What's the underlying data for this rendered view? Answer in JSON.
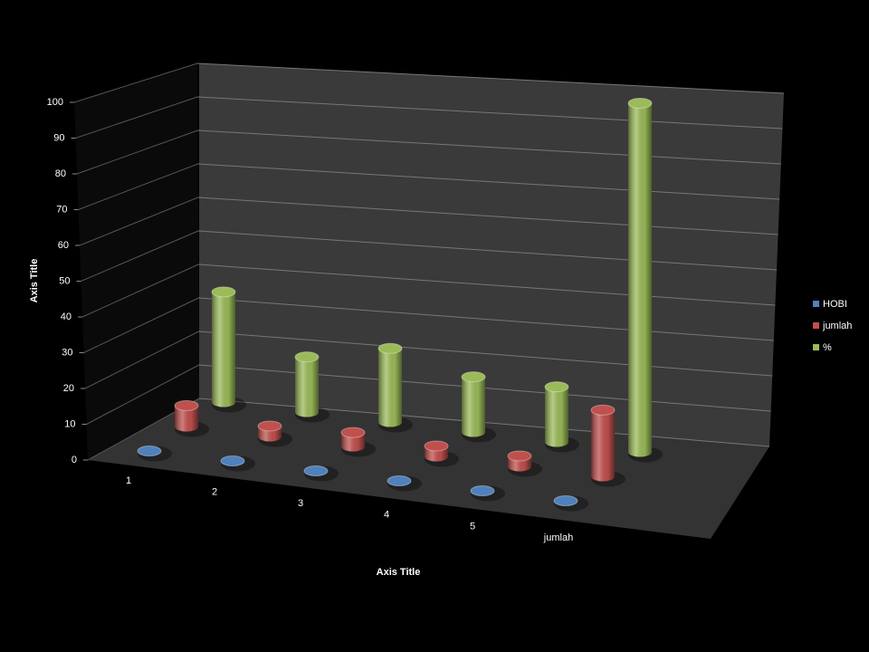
{
  "chart_data": {
    "type": "bar3d",
    "categories": [
      "1",
      "2",
      "3",
      "4",
      "5",
      "jumlah"
    ],
    "series": [
      {
        "name": "HOBI",
        "color": "#4f81bd",
        "values": [
          0,
          0,
          0,
          0,
          0,
          0
        ]
      },
      {
        "name": "jumlah",
        "color": "#c0504d",
        "values": [
          6,
          3,
          4,
          3,
          3,
          19
        ]
      },
      {
        "name": "%",
        "color": "#9bbb59",
        "values": [
          31.6,
          15.8,
          21.1,
          15.8,
          15.8,
          100
        ]
      }
    ],
    "y_axis_title": "Axis Title",
    "x_axis_title": "Axis Title",
    "ylim": [
      0,
      100
    ],
    "yticks": [
      0,
      10,
      20,
      30,
      40,
      50,
      60,
      70,
      80,
      90,
      100
    ],
    "grid": true,
    "legend": "right"
  }
}
